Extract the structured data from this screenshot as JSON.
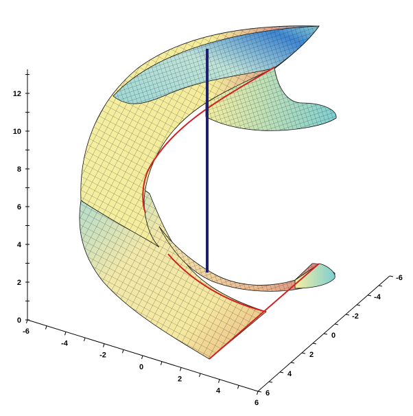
{
  "chart_data": {
    "type": "surface3d",
    "title": "",
    "xlabel": "",
    "ylabel": "",
    "zlabel": "",
    "z_axis": {
      "range": [
        0,
        13
      ],
      "ticks": [
        "0",
        "2",
        "4",
        "6",
        "8",
        "10",
        "12"
      ]
    },
    "x_axis": {
      "range": [
        -6,
        6
      ],
      "ticks": [
        "-6",
        "-4",
        "-2",
        "0",
        "2",
        "4",
        "6"
      ]
    },
    "y_axis": {
      "range": [
        -6,
        6
      ],
      "ticks": [
        "-6",
        "-4",
        "-2",
        "0",
        "2",
        "4",
        "6"
      ]
    },
    "surface": {
      "kind": "helicoid-like spiral ramp",
      "turns": 2,
      "z_range": [
        0,
        13
      ],
      "wireframe": true,
      "colormap": [
        "#f6f2a8",
        "#e6d898",
        "#d98c7d",
        "#5aa0d8",
        "#7ecfd4"
      ]
    },
    "axis_line": {
      "z_from": 2.5,
      "z_to": 12.6,
      "color": "#1e1e6e"
    },
    "boundary_curves": {
      "color": "#d22020"
    }
  }
}
